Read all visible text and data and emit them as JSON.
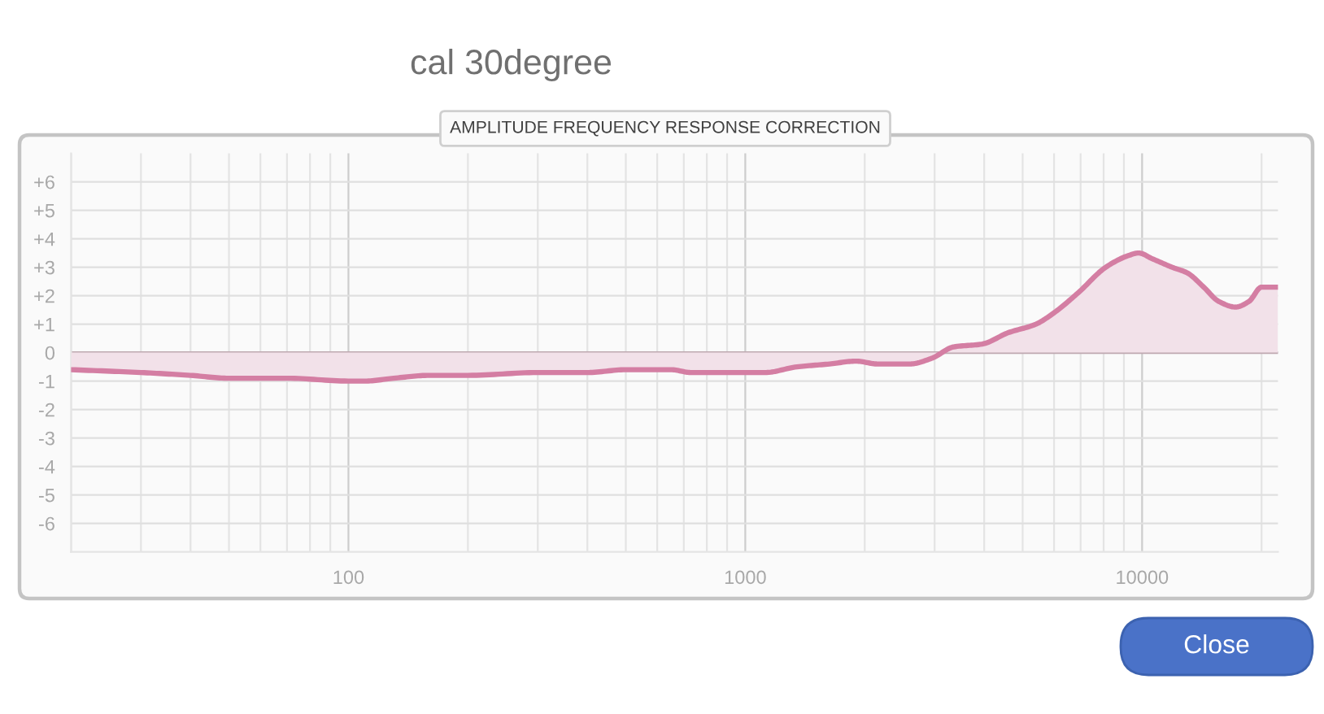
{
  "chart_data": {
    "type": "area",
    "title": "cal 30degree",
    "subtitle": "AMPLITUDE FREQUENCY RESPONSE CORRECTION",
    "x": [
      20,
      30,
      40,
      50,
      70,
      100,
      110,
      130,
      160,
      200,
      300,
      400,
      500,
      600,
      650,
      730,
      820,
      1000,
      1120,
      1350,
      1630,
      1900,
      2160,
      2600,
      2950,
      3350,
      3950,
      4600,
      5400,
      6000,
      6900,
      8100,
      9200,
      9800,
      10600,
      11900,
      13000,
      14300,
      15600,
      17200,
      18600,
      20000,
      22000
    ],
    "series": [
      {
        "color": "#d47ea3",
        "values": [
          -0.6,
          -0.7,
          -0.8,
          -0.9,
          -0.9,
          -1.0,
          -1.0,
          -0.9,
          -0.8,
          -0.8,
          -0.7,
          -0.7,
          -0.6,
          -0.6,
          -0.6,
          -0.7,
          -0.7,
          -0.7,
          -0.7,
          -0.5,
          -0.4,
          -0.3,
          -0.4,
          -0.4,
          -0.2,
          0.2,
          0.3,
          0.7,
          1.0,
          1.4,
          2.1,
          3.0,
          3.4,
          3.5,
          3.3,
          3.0,
          2.8,
          2.3,
          1.8,
          1.6,
          1.8,
          2.3,
          2.3
        ]
      }
    ],
    "log": "x",
    "xlim": [
      20,
      22000
    ],
    "xticks": [
      100,
      1000,
      10000
    ],
    "ylim": [
      -7,
      7
    ],
    "yticks": [
      {
        "value": 6,
        "label": "+6"
      },
      {
        "value": 5,
        "label": "+5"
      },
      {
        "value": 4,
        "label": "+4"
      },
      {
        "value": 3,
        "label": "+3"
      },
      {
        "value": 2,
        "label": "+2"
      },
      {
        "value": 1,
        "label": "+1"
      },
      0,
      -1,
      -2,
      -3,
      -4,
      -5,
      -6
    ],
    "grid": true,
    "ref_lines": [
      {
        "axis": "y",
        "value": 0,
        "color": "#bfa9b1"
      }
    ],
    "annotations": [
      "Close"
    ]
  }
}
